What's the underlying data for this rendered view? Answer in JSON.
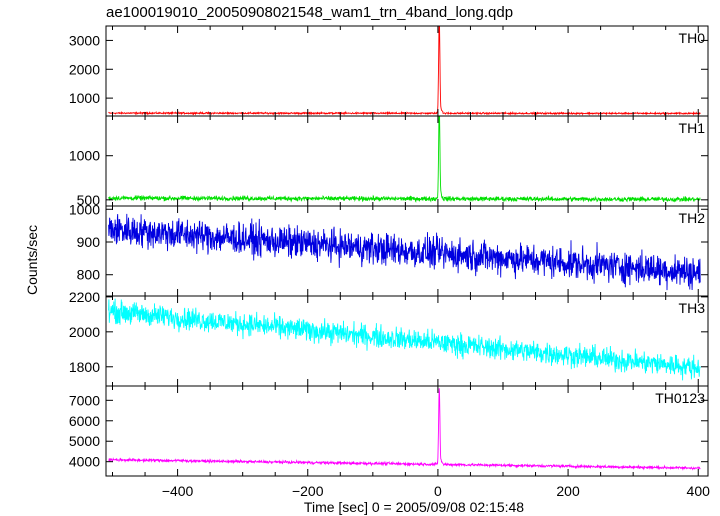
{
  "chart_data": {
    "type": "line",
    "title": "ae100019010_20050908021548_wam1_trn_4band_long.qdp",
    "xlabel": "Time [sec] 0 = 2005/09/08 02:15:48",
    "ylabel": "Counts/sec",
    "xlim": [
      -510,
      415
    ],
    "xticks": [
      -400,
      -200,
      0,
      200,
      400
    ],
    "grid": false,
    "panels": [
      {
        "name": "TH0",
        "color": "#ff0000",
        "ylim": [
          380,
          3500
        ],
        "yticks": [
          1000,
          2000,
          3000
        ],
        "baseline_start": 480,
        "baseline_end": 470,
        "noise": 22,
        "peak": 3700,
        "spike_at": 2
      },
      {
        "name": "TH1",
        "color": "#00e000",
        "ylim": [
          430,
          1450
        ],
        "yticks": [
          500,
          1000
        ],
        "baseline_start": 520,
        "baseline_end": 505,
        "noise": 22,
        "peak": 1550,
        "spike_at": 2
      },
      {
        "name": "TH2",
        "color": "#0000e0",
        "ylim": [
          735,
          1010
        ],
        "yticks": [
          800,
          900,
          1000
        ],
        "baseline_start": 940,
        "baseline_end": 805,
        "noise": 42,
        "peak": null,
        "spike_at": null
      },
      {
        "name": "TH3",
        "color": "#00ffff",
        "ylim": [
          1690,
          2205
        ],
        "yticks": [
          1800,
          2000,
          2200
        ],
        "baseline_start": 2120,
        "baseline_end": 1790,
        "noise": 55,
        "peak": null,
        "spike_at": null
      },
      {
        "name": "TH0123",
        "color": "#ff00ff",
        "ylim": [
          3300,
          7700
        ],
        "yticks": [
          4000,
          5000,
          6000,
          7000
        ],
        "baseline_start": 4100,
        "baseline_end": 3680,
        "noise": 55,
        "peak": 7800,
        "spike_at": 2
      }
    ]
  }
}
